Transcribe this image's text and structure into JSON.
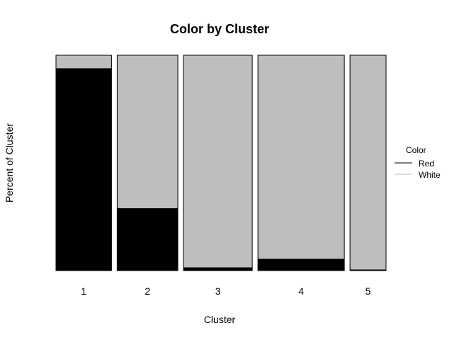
{
  "chart_data": {
    "type": "mosaic",
    "title": "Color by Cluster",
    "xlabel": "Cluster",
    "ylabel": "Percent of Cluster",
    "categories": [
      "1",
      "2",
      "3",
      "4",
      "5"
    ],
    "column_share": [
      0.151,
      0.165,
      0.187,
      0.235,
      0.098
    ],
    "series": [
      {
        "name": "Red",
        "color": "#000000",
        "values": [
          0.94,
          0.29,
          0.015,
          0.055,
          0.005
        ]
      },
      {
        "name": "White",
        "color": "#bebebe",
        "values": [
          0.06,
          0.71,
          0.985,
          0.945,
          0.995
        ]
      }
    ],
    "ylim": [
      0,
      1
    ],
    "grid": false,
    "legend": {
      "title": "Color",
      "position": "right"
    }
  }
}
